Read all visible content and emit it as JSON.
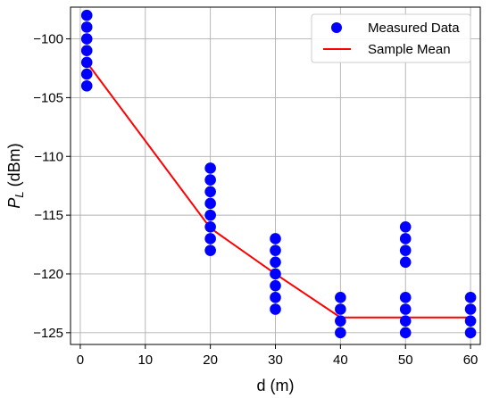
{
  "chart_data": {
    "type": "scatter",
    "xlabel": "d (m)",
    "ylabel_main": "P",
    "ylabel_sub": "L",
    "ylabel_unit": " (dBm)",
    "xlim": [
      -1.5,
      61.5
    ],
    "ylim": [
      -126,
      -97.3
    ],
    "xticks": [
      0,
      10,
      20,
      30,
      40,
      50,
      60
    ],
    "yticks": [
      -100,
      -105,
      -110,
      -115,
      -120,
      -125
    ],
    "grid": true,
    "legend_position": "top-right",
    "series": [
      {
        "name": "Measured Data",
        "kind": "scatter",
        "color": "#0000ff",
        "points": [
          [
            1,
            -98
          ],
          [
            1,
            -99
          ],
          [
            1,
            -100
          ],
          [
            1,
            -101
          ],
          [
            1,
            -102
          ],
          [
            1,
            -103
          ],
          [
            1,
            -104
          ],
          [
            20,
            -111
          ],
          [
            20,
            -112
          ],
          [
            20,
            -113
          ],
          [
            20,
            -114
          ],
          [
            20,
            -115
          ],
          [
            20,
            -116
          ],
          [
            20,
            -117
          ],
          [
            20,
            -118
          ],
          [
            30,
            -117
          ],
          [
            30,
            -118
          ],
          [
            30,
            -119
          ],
          [
            30,
            -120
          ],
          [
            30,
            -121
          ],
          [
            30,
            -122
          ],
          [
            30,
            -123
          ],
          [
            40,
            -122
          ],
          [
            40,
            -123
          ],
          [
            40,
            -124
          ],
          [
            40,
            -125
          ],
          [
            50,
            -116
          ],
          [
            50,
            -117
          ],
          [
            50,
            -118
          ],
          [
            50,
            -119
          ],
          [
            50,
            -122
          ],
          [
            50,
            -123
          ],
          [
            50,
            -124
          ],
          [
            50,
            -125
          ],
          [
            60,
            -122
          ],
          [
            60,
            -123
          ],
          [
            60,
            -124
          ],
          [
            60,
            -125
          ]
        ]
      },
      {
        "name": "Sample Mean",
        "kind": "line",
        "color": "#ff0000",
        "x": [
          1,
          20,
          30,
          40,
          50,
          60
        ],
        "y": [
          -102,
          -116.1,
          -120,
          -123.7,
          -123.7,
          -123.7
        ]
      }
    ]
  }
}
